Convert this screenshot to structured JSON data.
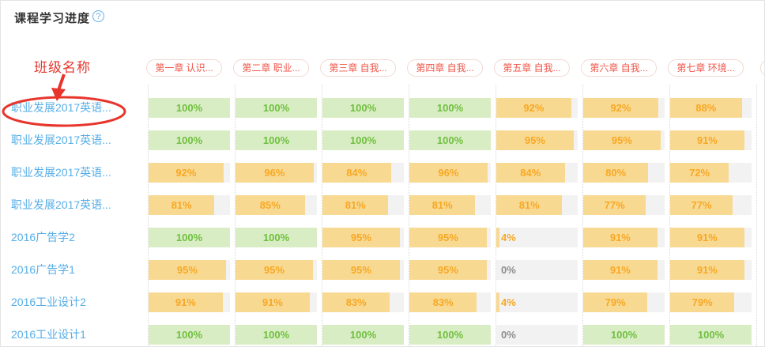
{
  "header": {
    "title": "课程学习进度",
    "help_glyph": "?"
  },
  "annotation": {
    "label": "班级名称",
    "color": "#e8352c"
  },
  "table": {
    "column_headers": [
      "第一章 认识...",
      "第二章 职业...",
      "第三章 自我...",
      "第四章 自我...",
      "第五章 自我...",
      "第六章 自我...",
      "第七章 环境..."
    ],
    "next_header_fragment": "第",
    "rows": [
      {
        "class_name": "职业发展2017英语...",
        "values": [
          100,
          100,
          100,
          100,
          92,
          92,
          88
        ]
      },
      {
        "class_name": "职业发展2017英语...",
        "values": [
          100,
          100,
          100,
          100,
          95,
          95,
          91
        ]
      },
      {
        "class_name": "职业发展2017英语...",
        "values": [
          92,
          96,
          84,
          96,
          84,
          80,
          72
        ]
      },
      {
        "class_name": "职业发展2017英语...",
        "values": [
          81,
          85,
          81,
          81,
          81,
          77,
          77
        ]
      },
      {
        "class_name": "2016广告学2",
        "values": [
          100,
          100,
          95,
          95,
          4,
          91,
          91
        ]
      },
      {
        "class_name": "2016广告学1",
        "values": [
          95,
          95,
          95,
          95,
          0,
          91,
          91
        ]
      },
      {
        "class_name": "2016工业设计2",
        "values": [
          91,
          91,
          83,
          83,
          4,
          79,
          79
        ]
      },
      {
        "class_name": "2016工业设计1",
        "values": [
          100,
          100,
          100,
          100,
          0,
          100,
          100
        ]
      }
    ],
    "value_suffix": "%"
  },
  "colors": {
    "green_bar": "#d9edc4",
    "green_text": "#6fbf3f",
    "orange_bar": "#f8d992",
    "orange_text": "#f7a824",
    "gray_track": "#f2f2f2",
    "gray_text": "#8c8c8c",
    "link_blue": "#55aee7",
    "pill_red": "#f0574a",
    "annotation_red": "#e8352c"
  }
}
